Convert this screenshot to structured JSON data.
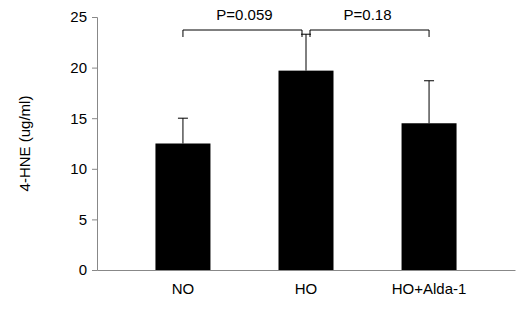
{
  "chart_data": {
    "type": "bar",
    "y_label": "4-HNE (ug/ml)",
    "categories": [
      "NO",
      "HO",
      "HO+Alda-1"
    ],
    "values": [
      12.5,
      19.7,
      14.5
    ],
    "errors": [
      2.5,
      3.6,
      4.2
    ],
    "color": "#000000",
    "ylim": [
      0,
      25
    ],
    "yticks": [
      0,
      5,
      10,
      15,
      20,
      25
    ],
    "grid": false,
    "annotations": [
      {
        "text": "P=0.059",
        "between": [
          "NO",
          "HO"
        ]
      },
      {
        "text": "P=0.18",
        "between": [
          "HO",
          "HO+Alda-1"
        ]
      }
    ]
  }
}
